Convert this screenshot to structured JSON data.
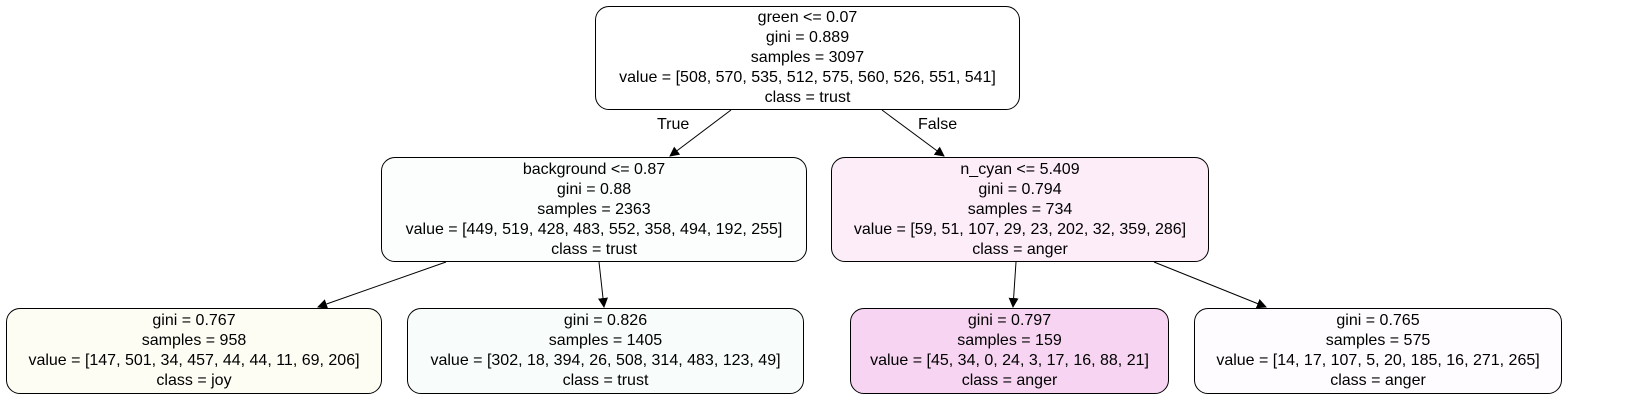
{
  "nodes": [
    {
      "id": "root",
      "lines": [
        "green <= 0.07",
        "gini = 0.889",
        "samples = 3097",
        "value = [508, 570, 535, 512, 575, 560, 526, 551, 541]",
        "class = trust"
      ],
      "fill": "#ffffff"
    },
    {
      "id": "left",
      "lines": [
        "background <= 0.87",
        "gini = 0.88",
        "samples = 2363",
        "value = [449, 519, 428, 483, 552, 358, 494, 192, 255]",
        "class = trust"
      ],
      "fill": "#fbfefd"
    },
    {
      "id": "right",
      "lines": [
        "n_cyan <= 5.409",
        "gini = 0.794",
        "samples = 734",
        "value = [59, 51, 107, 29, 23, 202, 32, 359, 286]",
        "class = anger"
      ],
      "fill": "#fcedf9"
    },
    {
      "id": "left-left",
      "lines": [
        "gini = 0.767",
        "samples = 958",
        "value = [147, 501, 34, 457, 44, 44, 11, 69, 206]",
        "class = joy"
      ],
      "fill": "#fdfdf4"
    },
    {
      "id": "left-right",
      "lines": [
        "gini = 0.826",
        "samples = 1405",
        "value = [302, 18, 394, 26, 508, 314, 483, 123, 49]",
        "class = trust"
      ],
      "fill": "#f8fdfc"
    },
    {
      "id": "right-left",
      "lines": [
        "gini = 0.797",
        "samples = 159",
        "value = [45, 34, 0, 24, 3, 17, 16, 88, 21]",
        "class = anger"
      ],
      "fill": "#f7d5f2"
    },
    {
      "id": "right-right",
      "lines": [
        "gini = 0.765",
        "samples = 575",
        "value = [14, 17, 107, 5, 20, 185, 16, 271, 265]",
        "class = anger"
      ],
      "fill": "#fefcfe"
    }
  ],
  "edges": [
    {
      "from": "root",
      "to": "left",
      "label": "True"
    },
    {
      "from": "root",
      "to": "right",
      "label": "False"
    },
    {
      "from": "left",
      "to": "left-left",
      "label": ""
    },
    {
      "from": "left",
      "to": "left-right",
      "label": ""
    },
    {
      "from": "right",
      "to": "right-left",
      "label": ""
    },
    {
      "from": "right",
      "to": "right-right",
      "label": ""
    }
  ]
}
